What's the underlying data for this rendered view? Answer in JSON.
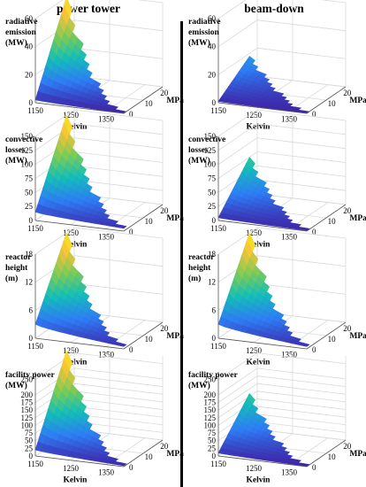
{
  "figure": {
    "column_titles": [
      "power tower",
      "beam-down"
    ],
    "axis_labels": {
      "x": "Kelvin",
      "y": "MPa"
    },
    "x_ticks": [
      "1150",
      "1250",
      "1350"
    ],
    "y_ticks": [
      "0",
      "10",
      "20"
    ],
    "colormap": [
      "#3e26a8",
      "#2e7cf5",
      "#13beb8",
      "#7ccb56",
      "#f6c23a",
      "#f9fb0e"
    ]
  },
  "chart_data": [
    {
      "type": "surface",
      "column": "power tower",
      "zlabel": [
        "radiative",
        "emission",
        "(MW)"
      ],
      "zticks": [
        "0",
        "20",
        "40",
        "60"
      ],
      "zlim": [
        0,
        60
      ],
      "xlim": [
        1150,
        1400
      ],
      "ylim": [
        0,
        25
      ],
      "surface": {
        "T_min": 1150,
        "T_max": 1400,
        "P_min": 0,
        "P_max": 20,
        "z_at_T_min": [
          2,
          60
        ],
        "z_at_T_max": [
          0,
          0
        ]
      }
    },
    {
      "type": "surface",
      "column": "beam-down",
      "zlabel": [
        "radiative",
        "emission",
        "(MW)"
      ],
      "zticks": [
        "0",
        "20",
        "40",
        "60"
      ],
      "zlim": [
        0,
        60
      ],
      "xlim": [
        1150,
        1400
      ],
      "ylim": [
        0,
        25
      ],
      "surface": {
        "T_min": 1150,
        "T_max": 1400,
        "P_min": 0,
        "P_max": 20,
        "z_at_T_min": [
          1,
          18
        ],
        "z_at_T_max": [
          0,
          0
        ]
      }
    },
    {
      "type": "surface",
      "column": "power tower",
      "zlabel": [
        "convective",
        "losses",
        "(MW)"
      ],
      "zticks": [
        "0",
        "25",
        "50",
        "75",
        "100",
        "125",
        "150"
      ],
      "zlim": [
        0,
        150
      ],
      "xlim": [
        1150,
        1400
      ],
      "ylim": [
        0,
        25
      ],
      "surface": {
        "T_min": 1150,
        "T_max": 1400,
        "P_min": 0,
        "P_max": 20,
        "z_at_T_min": [
          15,
          150
        ],
        "z_at_T_max": [
          5,
          10
        ]
      }
    },
    {
      "type": "surface",
      "column": "beam-down",
      "zlabel": [
        "convective",
        "losses",
        "(MW)"
      ],
      "zticks": [
        "0",
        "25",
        "50",
        "75",
        "100",
        "125",
        "150"
      ],
      "zlim": [
        0,
        150
      ],
      "xlim": [
        1150,
        1400
      ],
      "ylim": [
        0,
        25
      ],
      "surface": {
        "T_min": 1150,
        "T_max": 1400,
        "P_min": 0,
        "P_max": 20,
        "z_at_T_min": [
          5,
          75
        ],
        "z_at_T_max": [
          1,
          4
        ]
      }
    },
    {
      "type": "surface",
      "column": "power tower",
      "zlabel": [
        "reactor",
        "height",
        "(m)"
      ],
      "zticks": [
        "0",
        "6",
        "12",
        "18"
      ],
      "zlim": [
        0,
        18
      ],
      "xlim": [
        1150,
        1400
      ],
      "ylim": [
        0,
        25
      ],
      "surface": {
        "T_min": 1150,
        "T_max": 1400,
        "P_min": 0,
        "P_max": 20,
        "z_at_T_min": [
          3,
          18
        ],
        "z_at_T_max": [
          0.5,
          1
        ]
      }
    },
    {
      "type": "surface",
      "column": "beam-down",
      "zlabel": [
        "reactor",
        "height",
        "(m)"
      ],
      "zticks": [
        "0",
        "6",
        "12",
        "18"
      ],
      "zlim": [
        0,
        18
      ],
      "xlim": [
        1150,
        1400
      ],
      "ylim": [
        0,
        25
      ],
      "surface": {
        "T_min": 1150,
        "T_max": 1400,
        "P_min": 0,
        "P_max": 20,
        "z_at_T_min": [
          3,
          18
        ],
        "z_at_T_max": [
          0.5,
          1
        ]
      }
    },
    {
      "type": "surface",
      "column": "power tower",
      "zlabel": [
        "facility power",
        "(MW)"
      ],
      "zticks": [
        "0",
        "25",
        "50",
        "75",
        "100",
        "125",
        "150",
        "175",
        "200",
        "250"
      ],
      "zlim": [
        0,
        275
      ],
      "xlim": [
        1150,
        1400
      ],
      "ylim": [
        0,
        25
      ],
      "surface": {
        "T_min": 1150,
        "T_max": 1400,
        "P_min": 0,
        "P_max": 20,
        "z_at_T_min": [
          20,
          275
        ],
        "z_at_T_max": [
          3,
          8
        ]
      }
    },
    {
      "type": "surface",
      "column": "beam-down",
      "zlabel": [
        "facility power",
        "(MW)"
      ],
      "zticks": [
        "0",
        "25",
        "50",
        "75",
        "100",
        "125",
        "150",
        "175",
        "200",
        "250"
      ],
      "zlim": [
        0,
        275
      ],
      "xlim": [
        1150,
        1400
      ],
      "ylim": [
        0,
        25
      ],
      "surface": {
        "T_min": 1150,
        "T_max": 1400,
        "P_min": 0,
        "P_max": 20,
        "z_at_T_min": [
          10,
          135
        ],
        "z_at_T_max": [
          1,
          4
        ]
      }
    }
  ]
}
